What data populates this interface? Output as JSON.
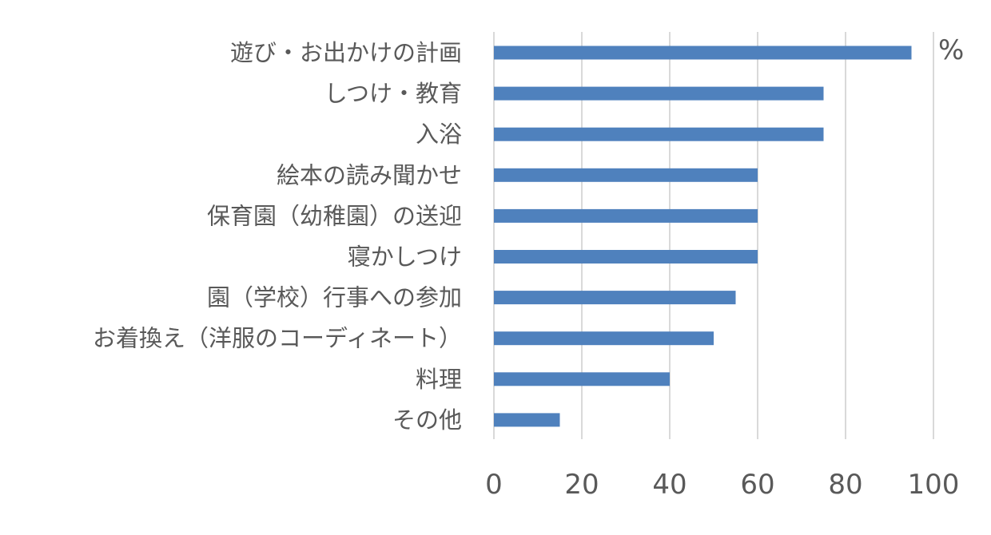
{
  "chart_data": {
    "type": "bar",
    "orientation": "horizontal",
    "title": "",
    "xlabel": "",
    "ylabel": "",
    "unit_label": "%",
    "categories": [
      "遊び・お出かけの計画",
      "しつけ・教育",
      "入浴",
      "絵本の読み聞かせ",
      "保育園（幼稚園）の送迎",
      "寝かしつけ",
      "園（学校）行事への参加",
      "お着換え（洋服のコーディネート）",
      "料理",
      "その他"
    ],
    "values": [
      95,
      75,
      75,
      60,
      60,
      60,
      55,
      50,
      40,
      15
    ],
    "xlim": [
      0,
      100
    ],
    "xticks": [
      "0",
      "20",
      "40",
      "60",
      "80",
      "100"
    ],
    "grid": true,
    "legend": "none",
    "bar_color": "#4f81bd",
    "grid_color": "#d9d9d9"
  }
}
